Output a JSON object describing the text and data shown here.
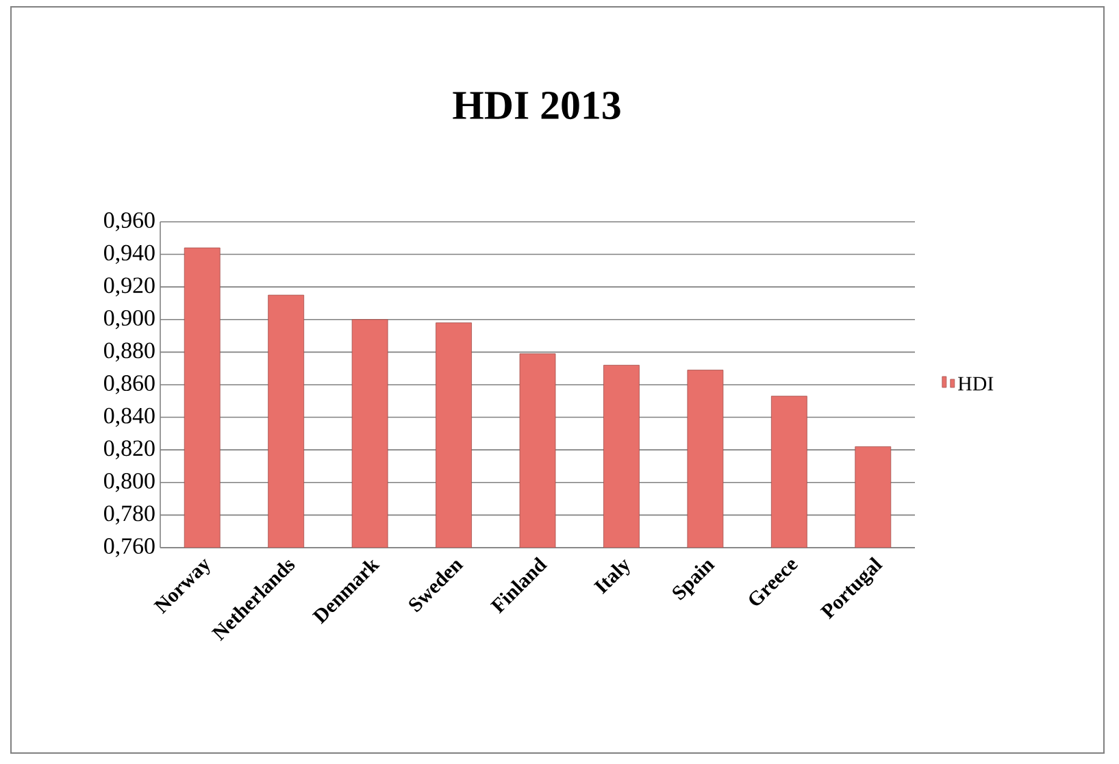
{
  "chart_data": {
    "type": "bar",
    "title": "HDI 2013",
    "categories": [
      "Norway",
      "Netherlands",
      "Denmark",
      "Sweden",
      "Finland",
      "Italy",
      "Spain",
      "Greece",
      "Portugal"
    ],
    "series": [
      {
        "name": "HDI",
        "color": "#e8706a",
        "values": [
          0.944,
          0.915,
          0.9,
          0.898,
          0.879,
          0.872,
          0.869,
          0.853,
          0.822
        ]
      }
    ],
    "ylim": [
      0.76,
      0.96
    ],
    "yticks": [
      {
        "value": 0.76,
        "label": "0,760"
      },
      {
        "value": 0.78,
        "label": "0,780"
      },
      {
        "value": 0.8,
        "label": "0,800"
      },
      {
        "value": 0.82,
        "label": "0,820"
      },
      {
        "value": 0.84,
        "label": "0,840"
      },
      {
        "value": 0.86,
        "label": "0,860"
      },
      {
        "value": 0.88,
        "label": "0,880"
      },
      {
        "value": 0.9,
        "label": "0,900"
      },
      {
        "value": 0.92,
        "label": "0,920"
      },
      {
        "value": 0.94,
        "label": "0,940"
      },
      {
        "value": 0.96,
        "label": "0,960"
      }
    ],
    "grid": "y",
    "legend": "right"
  }
}
